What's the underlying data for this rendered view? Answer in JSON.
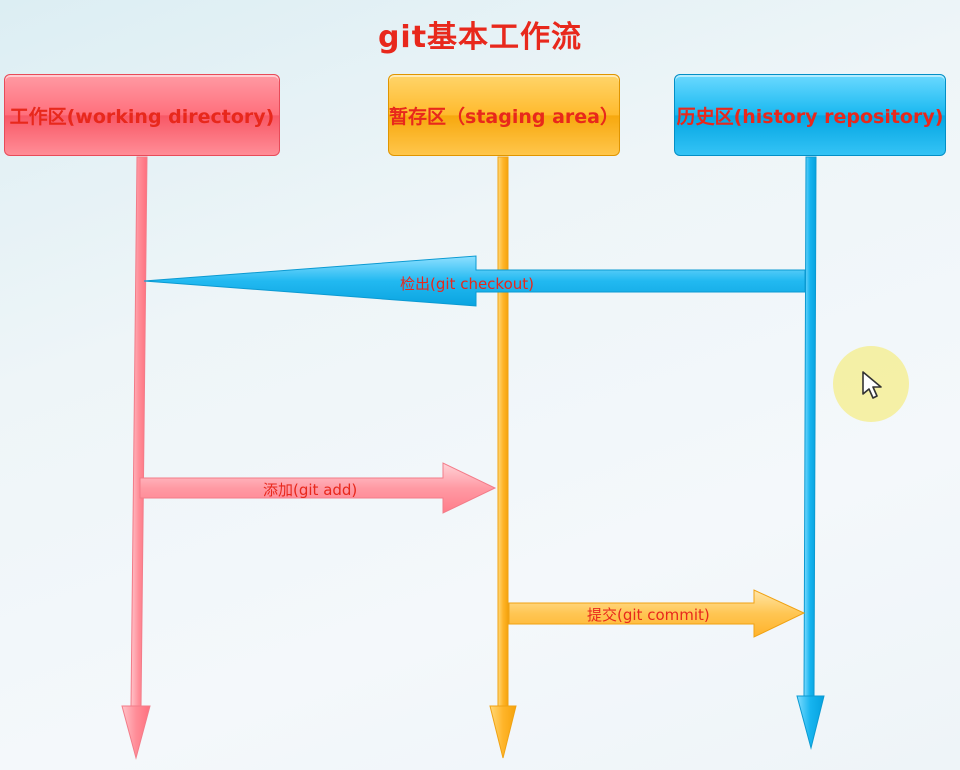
{
  "title": "git基本工作流",
  "boxes": {
    "working": "工作区(working directory)",
    "staging": "暂存区（staging area）",
    "history": "历史区(history repository)"
  },
  "arrows": {
    "checkout": "检出(git checkout)",
    "add": "添加(git add)",
    "commit": "提交(git commit)"
  },
  "colors": {
    "title": "#e8281c",
    "label": "#e8281c",
    "working": "#ff7a86",
    "staging": "#ffb623",
    "history": "#10b2ee"
  },
  "icons": {
    "cursor": "mouse-pointer-icon"
  }
}
